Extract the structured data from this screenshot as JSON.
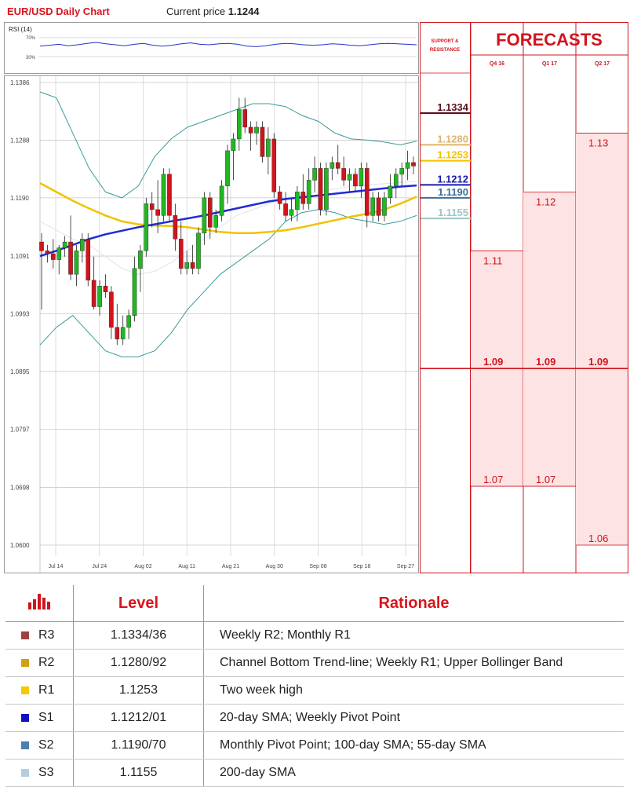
{
  "header": {
    "title": "EUR/USD Daily Chart",
    "price_label": "Current price",
    "price_value": "1.1244"
  },
  "chart_data": [
    {
      "type": "candlestick",
      "title": "EUR/USD Daily Chart",
      "y_ticks": [
        "1.1386",
        "1.1288",
        "1.1190",
        "1.1091",
        "1.0993",
        "1.0895",
        "1.0797",
        "1.0698",
        "1.0600"
      ],
      "ylim": [
        1.06,
        1.1386
      ],
      "x_ticks": [
        "Jul 14",
        "Jul 24",
        "Aug 02",
        "Aug 11",
        "Aug 21",
        "Aug 30",
        "Sep 08",
        "Sep 18",
        "Sep 27"
      ],
      "grid": true,
      "candles": [
        [
          1.1115,
          1.113,
          1.1,
          1.11
        ],
        [
          1.11,
          1.111,
          1.108,
          1.1095
        ],
        [
          1.1095,
          1.112,
          1.107,
          1.1085
        ],
        [
          1.1085,
          1.111,
          1.106,
          1.1105
        ],
        [
          1.1105,
          1.1125,
          1.109,
          1.1115
        ],
        [
          1.1115,
          1.116,
          1.105,
          1.106
        ],
        [
          1.106,
          1.111,
          1.104,
          1.11
        ],
        [
          1.11,
          1.113,
          1.108,
          1.112
        ],
        [
          1.112,
          1.113,
          1.104,
          1.105
        ],
        [
          1.105,
          1.109,
          1.1,
          1.1005
        ],
        [
          1.1005,
          1.105,
          1.099,
          1.104
        ],
        [
          1.104,
          1.106,
          1.102,
          1.103
        ],
        [
          1.103,
          1.104,
          1.095,
          1.097
        ],
        [
          1.097,
          1.101,
          1.094,
          1.095
        ],
        [
          1.095,
          1.099,
          1.094,
          1.097
        ],
        [
          1.097,
          1.1,
          1.095,
          1.099
        ],
        [
          1.099,
          1.109,
          1.098,
          1.107
        ],
        [
          1.107,
          1.111,
          1.103,
          1.11
        ],
        [
          1.11,
          1.119,
          1.109,
          1.118
        ],
        [
          1.118,
          1.12,
          1.114,
          1.117
        ],
        [
          1.117,
          1.122,
          1.113,
          1.116
        ],
        [
          1.116,
          1.124,
          1.115,
          1.123
        ],
        [
          1.123,
          1.124,
          1.115,
          1.116
        ],
        [
          1.116,
          1.118,
          1.11,
          1.112
        ],
        [
          1.112,
          1.115,
          1.106,
          1.107
        ],
        [
          1.107,
          1.11,
          1.106,
          1.108
        ],
        [
          1.108,
          1.111,
          1.106,
          1.107
        ],
        [
          1.107,
          1.114,
          1.106,
          1.113
        ],
        [
          1.113,
          1.12,
          1.111,
          1.119
        ],
        [
          1.119,
          1.12,
          1.112,
          1.114
        ],
        [
          1.114,
          1.117,
          1.113,
          1.116
        ],
        [
          1.116,
          1.122,
          1.115,
          1.121
        ],
        [
          1.121,
          1.128,
          1.118,
          1.127
        ],
        [
          1.127,
          1.13,
          1.122,
          1.129
        ],
        [
          1.129,
          1.136,
          1.127,
          1.134
        ],
        [
          1.134,
          1.136,
          1.13,
          1.131
        ],
        [
          1.131,
          1.132,
          1.127,
          1.13
        ],
        [
          1.13,
          1.132,
          1.128,
          1.131
        ],
        [
          1.131,
          1.132,
          1.125,
          1.126
        ],
        [
          1.126,
          1.131,
          1.123,
          1.129
        ],
        [
          1.129,
          1.13,
          1.119,
          1.12
        ],
        [
          1.12,
          1.121,
          1.117,
          1.118
        ],
        [
          1.118,
          1.12,
          1.115,
          1.116
        ],
        [
          1.116,
          1.119,
          1.115,
          1.117
        ],
        [
          1.117,
          1.121,
          1.115,
          1.12
        ],
        [
          1.12,
          1.123,
          1.117,
          1.118
        ],
        [
          1.118,
          1.124,
          1.117,
          1.122
        ],
        [
          1.122,
          1.126,
          1.12,
          1.124
        ],
        [
          1.124,
          1.125,
          1.116,
          1.117
        ],
        [
          1.117,
          1.125,
          1.116,
          1.124
        ],
        [
          1.124,
          1.126,
          1.122,
          1.125
        ],
        [
          1.125,
          1.128,
          1.123,
          1.124
        ],
        [
          1.124,
          1.126,
          1.121,
          1.122
        ],
        [
          1.122,
          1.124,
          1.12,
          1.123
        ],
        [
          1.123,
          1.124,
          1.12,
          1.121
        ],
        [
          1.121,
          1.125,
          1.119,
          1.124
        ],
        [
          1.124,
          1.125,
          1.114,
          1.116
        ],
        [
          1.116,
          1.12,
          1.115,
          1.119
        ],
        [
          1.119,
          1.12,
          1.115,
          1.116
        ],
        [
          1.116,
          1.12,
          1.115,
          1.119
        ],
        [
          1.119,
          1.123,
          1.118,
          1.121
        ],
        [
          1.121,
          1.124,
          1.119,
          1.123
        ],
        [
          1.123,
          1.125,
          1.121,
          1.124
        ],
        [
          1.124,
          1.127,
          1.122,
          1.125
        ],
        [
          1.125,
          1.126,
          1.123,
          1.1244
        ]
      ],
      "upper_band": [
        1.137,
        1.136,
        1.13,
        1.124,
        1.12,
        1.119,
        1.121,
        1.126,
        1.129,
        1.131,
        1.132,
        1.133,
        1.134,
        1.135,
        1.135,
        1.1345,
        1.133,
        1.132,
        1.13,
        1.129,
        1.1288,
        1.1285,
        1.128,
        1.1286
      ],
      "lower_band": [
        1.094,
        1.097,
        1.099,
        1.096,
        1.093,
        1.092,
        1.092,
        1.093,
        1.096,
        1.1,
        1.103,
        1.106,
        1.108,
        1.11,
        1.112,
        1.115,
        1.1165,
        1.117,
        1.1165,
        1.1155,
        1.115,
        1.1145,
        1.115,
        1.116
      ],
      "sma_blue": [
        1.1091,
        1.11,
        1.111,
        1.112,
        1.1128,
        1.1134,
        1.114,
        1.1145,
        1.115,
        1.1155,
        1.116,
        1.1166,
        1.1172,
        1.1178,
        1.1184,
        1.1188,
        1.1191,
        1.1194,
        1.1197,
        1.12,
        1.1203,
        1.1206,
        1.1209,
        1.1211
      ],
      "sma_yellow": [
        1.1215,
        1.12,
        1.1185,
        1.1172,
        1.116,
        1.115,
        1.1145,
        1.1143,
        1.1142,
        1.114,
        1.1136,
        1.1132,
        1.113,
        1.113,
        1.1132,
        1.1135,
        1.114,
        1.1146,
        1.1152,
        1.1158,
        1.1163,
        1.117,
        1.118,
        1.1192
      ],
      "sma_grey": [
        1.115,
        1.1135,
        1.112,
        1.111,
        1.109,
        1.107,
        1.106,
        1.1065,
        1.108,
        1.11,
        1.112,
        1.114,
        1.116,
        1.117,
        1.118,
        1.119,
        1.1195,
        1.12,
        1.1205,
        1.121,
        1.1212,
        1.1214,
        1.1216,
        1.1218
      ],
      "levels": [
        {
          "label": "1.1334",
          "value": 1.1334,
          "color": "#5a0f1e"
        },
        {
          "label": "1.1280",
          "value": 1.128,
          "color": "#e0b46a"
        },
        {
          "label": "1.1253",
          "value": 1.1253,
          "color": "#f2c200"
        },
        {
          "label": "1.1212",
          "value": 1.1212,
          "color": "#1a1ab0"
        },
        {
          "label": "1.1190",
          "value": 1.119,
          "color": "#3d6f94"
        },
        {
          "label": "1.1155",
          "value": 1.1155,
          "color": "#9fc5c5"
        }
      ],
      "colors": {
        "up": "#23b623",
        "down": "#d0141d",
        "band": "#3a9b9b",
        "sma_blue": "#1f2bd8",
        "sma_yellow": "#f2c200"
      }
    },
    {
      "type": "line",
      "title": "RSI (14)",
      "y_ticks": [
        "70%",
        "30%"
      ],
      "ylim": [
        0,
        100
      ],
      "values": [
        52,
        54,
        56,
        53,
        55,
        58,
        60,
        57,
        55,
        53,
        56,
        58,
        54,
        52,
        54,
        57,
        59,
        56,
        55,
        57,
        58,
        56,
        52,
        51,
        53,
        56,
        58,
        57,
        55,
        54,
        55,
        57,
        56,
        54,
        53,
        55,
        57,
        58,
        57,
        56,
        55
      ],
      "color": "#2233cc"
    },
    {
      "type": "bar",
      "title": "FORECASTS",
      "side_label": "SUPPORT & RESISTANCE",
      "categories": [
        "Q4 16",
        "Q1 17",
        "Q2 17"
      ],
      "ylim": [
        1.06,
        1.1386
      ],
      "ranges": [
        [
          1.07,
          1.11
        ],
        [
          1.07,
          1.12
        ],
        [
          1.06,
          1.13
        ]
      ],
      "central": [
        1.09,
        1.09,
        1.09
      ],
      "label_text": {
        "top": [
          "1.11",
          "1.12",
          "1.13"
        ],
        "central": [
          "1.09",
          "1.09",
          "1.09"
        ],
        "bottom": [
          "1.07",
          "1.07",
          "1.06"
        ]
      },
      "colors": {
        "fill": "#fde3e3",
        "line": "#d0141d",
        "text": "#d0141d"
      }
    }
  ],
  "levels_table": {
    "headers": [
      "Level",
      "Rationale"
    ],
    "rows": [
      {
        "name": "R3",
        "level": "1.1334/36",
        "rationale": "Weekly R2; Monthly R1",
        "color": "#a04040"
      },
      {
        "name": "R2",
        "level": "1.1280/92",
        "rationale": "Channel Bottom Trend-line; Weekly R1; Upper Bollinger Band",
        "color": "#d4a017"
      },
      {
        "name": "R1",
        "level": "1.1253",
        "rationale": "Two week high",
        "color": "#f5c800"
      },
      {
        "name": "S1",
        "level": "1.1212/01",
        "rationale": "20-day SMA; Weekly Pivot Point",
        "color": "#1010c0"
      },
      {
        "name": "S2",
        "level": "1.1190/70",
        "rationale": "Monthly Pivot Point; 100-day SMA; 55-day SMA",
        "color": "#4a7fb5"
      },
      {
        "name": "S3",
        "level": "1.1155",
        "rationale": "200-day SMA",
        "color": "#b5cde0"
      }
    ]
  }
}
